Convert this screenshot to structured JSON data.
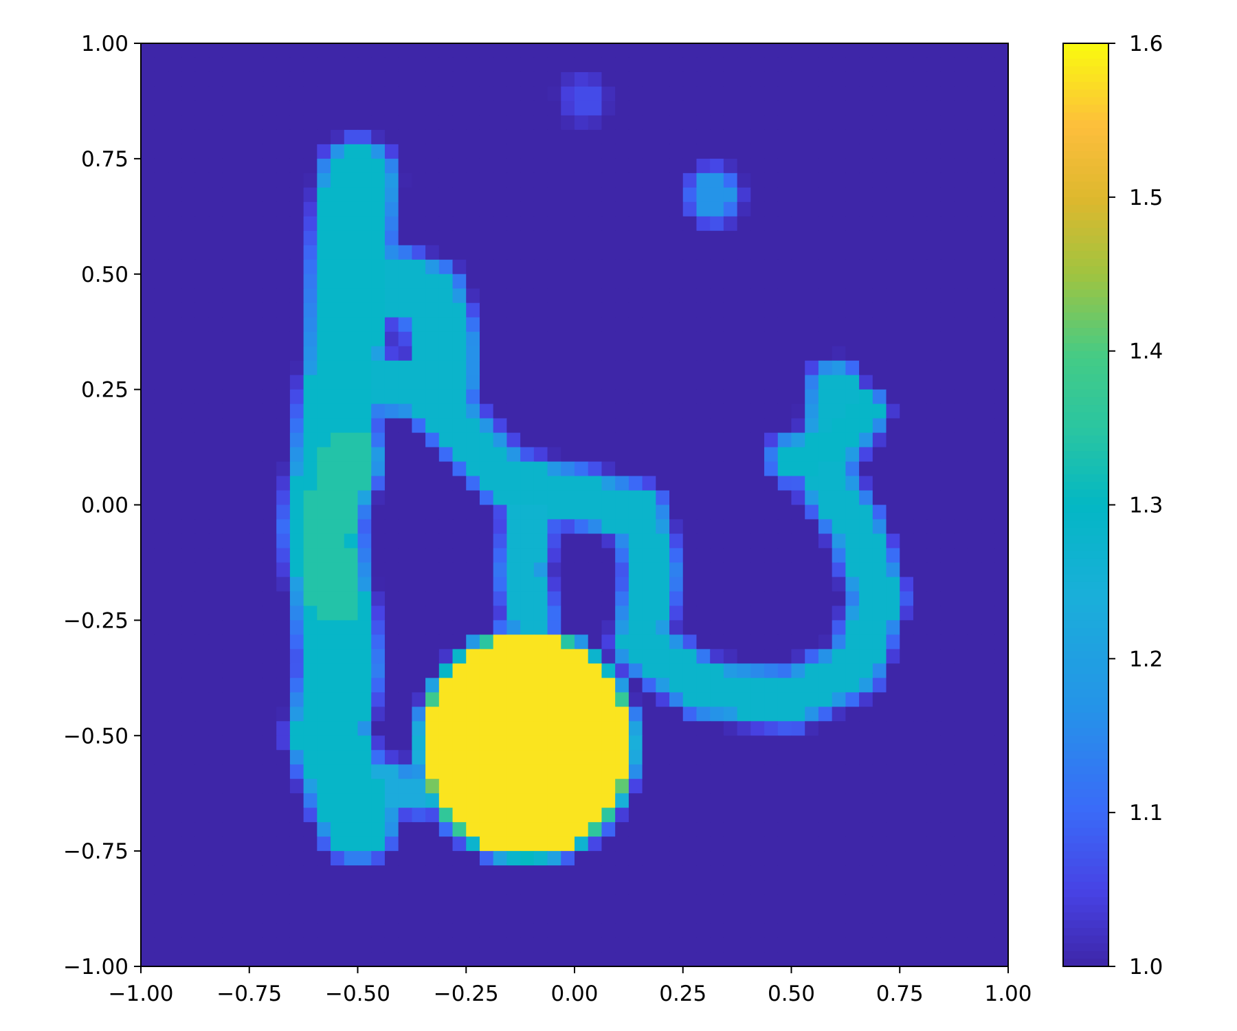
{
  "chart_data": {
    "type": "heatmap",
    "title": "",
    "xlabel": "",
    "ylabel": "",
    "xlim": [
      -1.0,
      1.0
    ],
    "ylim": [
      -1.0,
      1.0
    ],
    "grid": false,
    "colormap": "parula",
    "colorbar": {
      "range": [
        1.0,
        1.6
      ],
      "ticks": [
        1.0,
        1.1,
        1.2,
        1.3,
        1.4,
        1.5,
        1.6
      ],
      "tick_labels": [
        "1.0",
        "1.1",
        "1.2",
        "1.3",
        "1.4",
        "1.5",
        "1.6"
      ]
    },
    "x_ticks": [
      -1.0,
      -0.75,
      -0.5,
      -0.25,
      0.0,
      0.25,
      0.5,
      0.75,
      1.0
    ],
    "x_tick_labels": [
      "−1.00",
      "−0.75",
      "−0.50",
      "−0.25",
      "0.00",
      "0.25",
      "0.50",
      "0.75",
      "1.00"
    ],
    "y_ticks": [
      1.0,
      0.75,
      0.5,
      0.25,
      0.0,
      -0.25,
      -0.5,
      -0.75,
      -1.0
    ],
    "y_tick_labels": [
      "1.00",
      "0.75",
      "0.50",
      "0.25",
      "0.00",
      "−0.25",
      "−0.50",
      "−0.75",
      "−1.00"
    ],
    "background_value": 1.0,
    "features": [
      {
        "shape": "disk",
        "cx": -0.11,
        "cy": -0.52,
        "r": 0.235,
        "value": 1.58
      },
      {
        "shape": "band",
        "points": [
          [
            -0.5,
            0.7
          ],
          [
            -0.52,
            0.5
          ],
          [
            -0.53,
            0.3
          ],
          [
            -0.56,
            0.1
          ],
          [
            -0.58,
            -0.05
          ],
          [
            -0.56,
            -0.2
          ],
          [
            -0.54,
            -0.35
          ],
          [
            -0.57,
            -0.5
          ],
          [
            -0.5,
            -0.68
          ]
        ],
        "width": 0.075,
        "value": 1.29
      },
      {
        "shape": "band",
        "points": [
          [
            -0.52,
            0.1
          ],
          [
            -0.58,
            -0.05
          ],
          [
            -0.56,
            -0.2
          ]
        ],
        "width": 0.06,
        "value": 1.34
      },
      {
        "shape": "band",
        "points": [
          [
            -0.42,
            0.48
          ],
          [
            -0.33,
            0.45
          ],
          [
            -0.3,
            0.35
          ],
          [
            -0.3,
            0.27
          ]
        ],
        "width": 0.06,
        "value": 1.28
      },
      {
        "shape": "band",
        "points": [
          [
            -0.46,
            0.26
          ],
          [
            -0.35,
            0.25
          ],
          [
            -0.25,
            0.15
          ],
          [
            -0.15,
            0.05
          ],
          [
            0.0,
            0.02
          ],
          [
            0.15,
            -0.02
          ],
          [
            0.18,
            -0.15
          ],
          [
            0.15,
            -0.3
          ],
          [
            0.3,
            -0.4
          ],
          [
            0.5,
            -0.42
          ],
          [
            0.65,
            -0.35
          ],
          [
            0.7,
            -0.2
          ],
          [
            0.65,
            -0.05
          ],
          [
            0.58,
            0.05
          ],
          [
            0.6,
            0.25
          ]
        ],
        "width": 0.045,
        "value": 1.28
      },
      {
        "shape": "band",
        "points": [
          [
            -0.1,
            0.0
          ],
          [
            -0.12,
            -0.15
          ],
          [
            -0.1,
            -0.25
          ]
        ],
        "width": 0.04,
        "value": 1.27
      },
      {
        "shape": "band",
        "points": [
          [
            -0.2,
            -0.55
          ],
          [
            -0.35,
            -0.62
          ],
          [
            -0.48,
            -0.6
          ]
        ],
        "width": 0.035,
        "value": 1.23
      },
      {
        "shape": "band",
        "points": [
          [
            0.5,
            0.1
          ],
          [
            0.6,
            0.12
          ],
          [
            0.67,
            0.2
          ]
        ],
        "width": 0.035,
        "value": 1.29
      },
      {
        "shape": "disk",
        "cx": 0.32,
        "cy": 0.67,
        "r": 0.045,
        "value": 1.17
      },
      {
        "shape": "disk",
        "cx": 0.02,
        "cy": 0.88,
        "r": 0.035,
        "value": 1.06
      }
    ]
  }
}
